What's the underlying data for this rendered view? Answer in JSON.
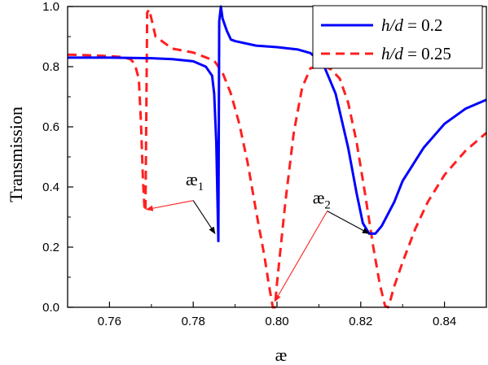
{
  "chart_data": {
    "type": "line",
    "xlabel": "æ",
    "ylabel": "Transmission",
    "xlim": [
      0.75,
      0.85
    ],
    "ylim": [
      0.0,
      1.0
    ],
    "xticks": [
      0.76,
      0.78,
      0.8,
      0.82,
      0.84
    ],
    "xtick_labels": [
      "0.76",
      "0.78",
      "0.80",
      "0.82",
      "0.84"
    ],
    "yticks": [
      0.0,
      0.2,
      0.4,
      0.6,
      0.8,
      1.0
    ],
    "ytick_labels": [
      "0.0",
      "0.2",
      "0.4",
      "0.6",
      "0.8",
      "1.0"
    ],
    "grid": false,
    "legend_position": "top-right",
    "series": [
      {
        "name_prefix": "h/d",
        "name_value": " = 0.2",
        "color": "#0000ff",
        "style": "solid",
        "x": [
          0.75,
          0.76,
          0.77,
          0.775,
          0.78,
          0.783,
          0.7845,
          0.785,
          0.7855,
          0.7858,
          0.786,
          0.7862,
          0.7866,
          0.787,
          0.788,
          0.789,
          0.79,
          0.795,
          0.8,
          0.805,
          0.808,
          0.811,
          0.814,
          0.817,
          0.819,
          0.8205,
          0.822,
          0.8235,
          0.825,
          0.828,
          0.83,
          0.835,
          0.84,
          0.845,
          0.85
        ],
        "y": [
          0.83,
          0.83,
          0.828,
          0.825,
          0.818,
          0.8,
          0.77,
          0.71,
          0.55,
          0.35,
          0.22,
          0.95,
          1.0,
          0.96,
          0.92,
          0.89,
          0.885,
          0.87,
          0.865,
          0.857,
          0.845,
          0.81,
          0.71,
          0.53,
          0.38,
          0.28,
          0.245,
          0.245,
          0.27,
          0.35,
          0.42,
          0.53,
          0.61,
          0.66,
          0.69
        ]
      },
      {
        "name_prefix": "h/d",
        "name_value": " = 0.25",
        "color": "#ff2020",
        "style": "dashed",
        "x": [
          0.75,
          0.755,
          0.76,
          0.763,
          0.765,
          0.766,
          0.767,
          0.7675,
          0.768,
          0.7684,
          0.7686,
          0.769,
          0.7695,
          0.771,
          0.775,
          0.78,
          0.785,
          0.787,
          0.789,
          0.791,
          0.793,
          0.795,
          0.797,
          0.798,
          0.799,
          0.7995,
          0.8,
          0.802,
          0.804,
          0.806,
          0.808,
          0.81,
          0.8115,
          0.813,
          0.815,
          0.817,
          0.819,
          0.821,
          0.823,
          0.8245,
          0.8258,
          0.8265,
          0.827,
          0.828,
          0.83,
          0.833,
          0.836,
          0.84,
          0.845,
          0.85
        ],
        "y": [
          0.84,
          0.838,
          0.835,
          0.832,
          0.825,
          0.81,
          0.76,
          0.62,
          0.42,
          0.32,
          0.33,
          0.98,
          0.99,
          0.9,
          0.86,
          0.847,
          0.82,
          0.78,
          0.71,
          0.61,
          0.48,
          0.32,
          0.17,
          0.08,
          0.0,
          0.0,
          0.08,
          0.35,
          0.58,
          0.73,
          0.795,
          0.8,
          0.8,
          0.79,
          0.76,
          0.68,
          0.55,
          0.38,
          0.2,
          0.08,
          0.005,
          0.0,
          0.02,
          0.07,
          0.15,
          0.26,
          0.35,
          0.44,
          0.52,
          0.58
        ]
      }
    ],
    "annotations": [
      {
        "label": "æ",
        "subscript": "1",
        "text_x": 0.7782,
        "text_y": 0.405,
        "color": "#ff2020",
        "line_from": [
          0.78,
          0.355
        ],
        "line_to": [
          0.7688,
          0.325
        ],
        "color2": "#000000",
        "line2_from": [
          0.78,
          0.355
        ],
        "line2_to": [
          0.7852,
          0.245
        ]
      },
      {
        "label": "æ",
        "subscript": "2",
        "text_x": 0.8085,
        "text_y": 0.345,
        "color": "#ff2020",
        "line_from": [
          0.812,
          0.32
        ],
        "line_to": [
          0.7995,
          0.02
        ],
        "color2": "#000000",
        "line2_from": [
          0.812,
          0.32
        ],
        "line2_to": [
          0.822,
          0.245
        ]
      }
    ]
  }
}
